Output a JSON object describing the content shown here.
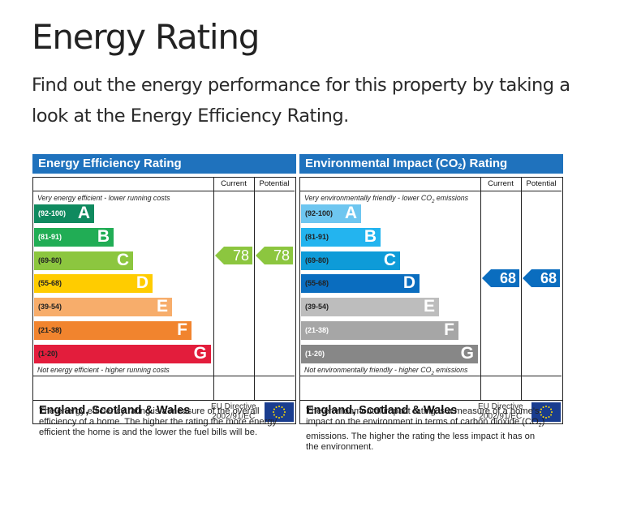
{
  "page": {
    "title": "Energy Rating",
    "intro": "Find out the energy performance for this property by taking a look at the Energy Efficiency Rating."
  },
  "chart_data": [
    {
      "type": "bar",
      "title": "Energy Efficiency Rating",
      "column_headers": {
        "current": "Current",
        "potential": "Potential"
      },
      "top_caption": "Very energy efficient - lower running costs",
      "bottom_caption": "Not energy efficient - higher running costs",
      "bands": [
        {
          "range": "(92-100)",
          "letter": "A",
          "color": "#0f8a5f",
          "range_color": "#ffffff"
        },
        {
          "range": "(81-91)",
          "letter": "B",
          "color": "#21ad55",
          "range_color": "#ffffff"
        },
        {
          "range": "(69-80)",
          "letter": "C",
          "color": "#8cc63f",
          "range_color": "#222222"
        },
        {
          "range": "(55-68)",
          "letter": "D",
          "color": "#ffcc00",
          "range_color": "#222222"
        },
        {
          "range": "(39-54)",
          "letter": "E",
          "color": "#f7ad6b",
          "range_color": "#222222"
        },
        {
          "range": "(21-38)",
          "letter": "F",
          "color": "#f1842e",
          "range_color": "#222222"
        },
        {
          "range": "(1-20)",
          "letter": "G",
          "color": "#e31d3c",
          "range_color": "#222222"
        }
      ],
      "current": {
        "value": 78,
        "band": "C",
        "color": "#8cc63f"
      },
      "potential": {
        "value": 78,
        "band": "C",
        "color": "#8cc63f"
      },
      "footer": {
        "region": "England, Scotland & Wales",
        "directive_line1": "EU Directive",
        "directive_line2": "2002/91/EC"
      },
      "description": "The energy efficiency rating is a measure of the overall efficiency of a home. The higher the rating the more energy efficient the home is and the lower the fuel bills will be."
    },
    {
      "type": "bar",
      "title_prefix": "Environmental Impact (CO",
      "title_sub": "2",
      "title_suffix": ") Rating",
      "column_headers": {
        "current": "Current",
        "potential": "Potential"
      },
      "top_caption_prefix": "Very environmentally friendly - lower CO",
      "top_caption_sub": "2",
      "top_caption_suffix": " emissions",
      "bottom_caption_prefix": "Not environmentally friendly - higher CO",
      "bottom_caption_sub": "2",
      "bottom_caption_suffix": " emissions",
      "bands": [
        {
          "range": "(92-100)",
          "letter": "A",
          "color": "#6ec6f0",
          "range_color": "#222222"
        },
        {
          "range": "(81-91)",
          "letter": "B",
          "color": "#23b4ef",
          "range_color": "#222222"
        },
        {
          "range": "(69-80)",
          "letter": "C",
          "color": "#0e9bd8",
          "range_color": "#222222"
        },
        {
          "range": "(55-68)",
          "letter": "D",
          "color": "#0a6dbf",
          "range_color": "#222222"
        },
        {
          "range": "(39-54)",
          "letter": "E",
          "color": "#bdbdbd",
          "range_color": "#222222"
        },
        {
          "range": "(21-38)",
          "letter": "F",
          "color": "#a6a6a6",
          "range_color": "#ffffff"
        },
        {
          "range": "(1-20)",
          "letter": "G",
          "color": "#878787",
          "range_color": "#ffffff"
        }
      ],
      "current": {
        "value": 68,
        "band": "D",
        "color": "#0a6dbf"
      },
      "potential": {
        "value": 68,
        "band": "D",
        "color": "#0a6dbf"
      },
      "footer": {
        "region": "England, Scotland & Wales",
        "directive_line1": "EU Directive",
        "directive_line2": "2002/91/EC"
      },
      "description_prefix": "The environmental impact rating is a measure of a home's impact on the environment in terms of carbon dioxide (CO",
      "description_sub": "2",
      "description_suffix": ") emissions. The higher the rating the less impact it has on the environment."
    }
  ]
}
